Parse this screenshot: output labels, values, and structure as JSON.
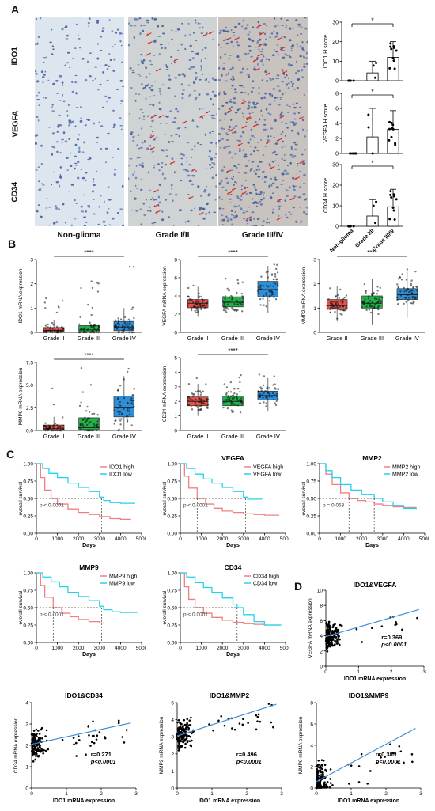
{
  "panels": {
    "a": "A",
    "b": "B",
    "c": "C",
    "d": "D"
  },
  "histology": {
    "row_labels": [
      "IDO1",
      "VEGFA",
      "CD34"
    ],
    "col_labels": [
      "Non-glioma",
      "Grade I/II",
      "Grade III/IV"
    ]
  },
  "colors": {
    "grade2": "#e8524a",
    "grade3": "#1fb34a",
    "grade4": "#2e8fd8",
    "high": "#f08080",
    "low": "#22d3ee",
    "reg": "#3b8fd9"
  },
  "chart_data": [
    {
      "type": "bar",
      "id": "h_ido1",
      "ylabel": "IDO1 H score",
      "categories": [
        "Non-glioma",
        "Grade I/II",
        "Grade III/IV"
      ],
      "values": [
        0,
        4,
        12
      ],
      "errors": [
        0,
        6,
        8
      ],
      "ylim": [
        0,
        30
      ],
      "yticks": [
        "0",
        "10",
        "20",
        "30"
      ],
      "sig": "*"
    },
    {
      "type": "bar",
      "id": "h_vegfa",
      "ylabel": "VEGFA H score",
      "categories": [
        "Non-glioma",
        "Grade I/II",
        "Grade III/IV"
      ],
      "values": [
        0,
        2.2,
        3.2
      ],
      "errors": [
        0,
        3.8,
        2.5
      ],
      "ylim": [
        0,
        8
      ],
      "yticks": [
        "0",
        "2",
        "4",
        "6",
        "8"
      ],
      "sig": "*"
    },
    {
      "type": "bar",
      "id": "h_cd34",
      "ylabel": "CD34 H score",
      "categories": [
        "Non-glioma",
        "Grade I/II",
        "Grade III/IV"
      ],
      "values": [
        0,
        5,
        9.5
      ],
      "errors": [
        0,
        8,
        8.5
      ],
      "ylim": [
        0,
        30
      ],
      "yticks": [
        "0",
        "10",
        "20",
        "30"
      ],
      "sig": "*"
    },
    {
      "type": "box",
      "id": "b_ido1",
      "ylabel": "IDO1 mRNA expression",
      "categories": [
        "Grade II",
        "Grade III",
        "Grade IV"
      ],
      "medians": [
        0.08,
        0.1,
        0.22
      ],
      "q1": [
        0.02,
        0.03,
        0.07
      ],
      "q3": [
        0.2,
        0.28,
        0.45
      ],
      "wlo": [
        0,
        0,
        0
      ],
      "whi": [
        0.5,
        0.65,
        1.0
      ],
      "ymax": [
        1.5,
        2.2,
        2.9
      ],
      "ylim": [
        0,
        3
      ],
      "yticks": [
        "0",
        "1",
        "2",
        "3"
      ],
      "sig": "****"
    },
    {
      "type": "box",
      "id": "b_vegfa",
      "ylabel": "VEGFA mRNA expression",
      "categories": [
        "Grade II",
        "Grade III",
        "Grade IV"
      ],
      "medians": [
        3.2,
        3.3,
        4.7
      ],
      "q1": [
        2.7,
        2.8,
        3.9
      ],
      "q3": [
        3.6,
        3.9,
        5.6
      ],
      "wlo": [
        1.7,
        1.5,
        2.1
      ],
      "whi": [
        5.0,
        5.5,
        7.3
      ],
      "ymax": [
        5.5,
        6.0,
        7.5
      ],
      "ylim": [
        0,
        8
      ],
      "yticks": [
        "0",
        "2",
        "4",
        "6",
        "8"
      ],
      "sig": "****"
    },
    {
      "type": "box",
      "id": "b_mmp2",
      "ylabel": "MMP2 mRNA expression",
      "categories": [
        "Grade II",
        "Grade III",
        "Grade IV"
      ],
      "medians": [
        1.1,
        1.2,
        1.55
      ],
      "q1": [
        0.95,
        1.0,
        1.35
      ],
      "q3": [
        1.35,
        1.5,
        1.8
      ],
      "wlo": [
        0.45,
        0.3,
        0.6
      ],
      "whi": [
        1.9,
        2.2,
        2.5
      ],
      "ymax": [
        2.0,
        2.3,
        2.6
      ],
      "ylim": [
        0,
        3
      ],
      "yticks": [
        "0",
        "1",
        "2",
        "3"
      ],
      "sig": "****"
    },
    {
      "type": "box",
      "id": "b_mmp9",
      "ylabel": "MMP9 mRNA expression",
      "categories": [
        "Grade II",
        "Grade III",
        "Grade IV"
      ],
      "medians": [
        0.2,
        0.3,
        2.5
      ],
      "q1": [
        0.08,
        0.1,
        1.5
      ],
      "q3": [
        0.6,
        1.4,
        3.8
      ],
      "wlo": [
        0,
        0,
        0.1
      ],
      "whi": [
        1.5,
        3.2,
        6.0
      ],
      "ymax": [
        5.5,
        7.0,
        7.5
      ],
      "ylim": [
        0,
        7.5
      ],
      "yticks": [
        "0.0",
        "2.5",
        "5.0",
        "7.5"
      ],
      "sig": "****"
    },
    {
      "type": "box",
      "id": "b_cd34",
      "ylabel": "CD34 mRNA expression",
      "categories": [
        "Grade II",
        "Grade III",
        "Grade IV"
      ],
      "medians": [
        2.0,
        2.0,
        2.4
      ],
      "q1": [
        1.7,
        1.7,
        2.1
      ],
      "q3": [
        2.3,
        2.35,
        2.7
      ],
      "wlo": [
        1.0,
        0.9,
        1.3
      ],
      "whi": [
        3.2,
        3.4,
        3.6
      ],
      "ymax": [
        3.6,
        3.9,
        4.1
      ],
      "ylim": [
        0,
        5
      ],
      "yticks": [
        "0",
        "1",
        "2",
        "3",
        "4",
        "5"
      ],
      "sig": "****"
    },
    {
      "type": "line",
      "id": "k_ido1",
      "title": "",
      "xlabel": "Days",
      "ylabel": "overall survival",
      "xlim": [
        0,
        5000
      ],
      "ylim": [
        0,
        1
      ],
      "xticks": [
        "0",
        "1000",
        "2000",
        "3000",
        "4000",
        "5000"
      ],
      "yticks": [
        "0.00",
        "0.25",
        "0.50",
        "0.75",
        "1.00"
      ],
      "pvalue": "p < 0.0001",
      "median_high": 700,
      "median_low": 3100,
      "series": [
        {
          "name": "IDO1 high",
          "x": [
            0,
            200,
            400,
            700,
            1000,
            1500,
            2000,
            2500,
            3000,
            3500,
            4000,
            4500
          ],
          "y": [
            1.0,
            0.8,
            0.62,
            0.5,
            0.42,
            0.35,
            0.3,
            0.27,
            0.24,
            0.21,
            0.2,
            0.2
          ]
        },
        {
          "name": "IDO1 low",
          "x": [
            0,
            300,
            600,
            1000,
            1500,
            2000,
            2500,
            3000,
            3200,
            3500,
            4000,
            4700
          ],
          "y": [
            1.0,
            0.93,
            0.86,
            0.8,
            0.72,
            0.66,
            0.6,
            0.52,
            0.47,
            0.44,
            0.43,
            0.43
          ]
        }
      ]
    },
    {
      "type": "line",
      "id": "k_vegfa",
      "title": "VEGFA",
      "xlabel": "Days",
      "ylabel": "overall survival",
      "xlim": [
        0,
        5000
      ],
      "ylim": [
        0,
        1
      ],
      "xticks": [
        "0",
        "1000",
        "2000",
        "3000",
        "4000",
        "5000"
      ],
      "yticks": [
        "0.00",
        "0.25",
        "0.50",
        "0.75",
        "1.00"
      ],
      "pvalue": "p < 0.0001",
      "median_high": 800,
      "median_low": 3100,
      "series": [
        {
          "name": "VEGFA high",
          "x": [
            0,
            200,
            400,
            800,
            1200,
            1600,
            2000,
            2500,
            3000,
            3500,
            4000,
            4700
          ],
          "y": [
            1.0,
            0.82,
            0.65,
            0.5,
            0.42,
            0.36,
            0.32,
            0.3,
            0.28,
            0.27,
            0.26,
            0.26
          ]
        },
        {
          "name": "VEGFA low",
          "x": [
            0,
            300,
            700,
            1100,
            1500,
            2000,
            2500,
            3000,
            3200,
            3500,
            3900
          ],
          "y": [
            1.0,
            0.93,
            0.85,
            0.78,
            0.72,
            0.66,
            0.6,
            0.52,
            0.49,
            0.49,
            0.49
          ]
        }
      ]
    },
    {
      "type": "line",
      "id": "k_mmp2",
      "title": "MMP2",
      "xlabel": "Days",
      "ylabel": "overall survival",
      "xlim": [
        0,
        5000
      ],
      "ylim": [
        0,
        1
      ],
      "xticks": [
        "0",
        "1000",
        "2000",
        "3000",
        "4000",
        "5000"
      ],
      "yticks": [
        "0.00",
        "0.25",
        "0.50",
        "0.75",
        "1.00"
      ],
      "pvalue": "p = 0.053",
      "median_high": 1400,
      "median_low": 2600,
      "series": [
        {
          "name": "MMP2 high",
          "x": [
            0,
            300,
            600,
            1000,
            1400,
            1800,
            2200,
            2600,
            3000,
            3500,
            4000,
            4600
          ],
          "y": [
            1.0,
            0.85,
            0.7,
            0.58,
            0.5,
            0.47,
            0.45,
            0.42,
            0.4,
            0.38,
            0.37,
            0.37
          ]
        },
        {
          "name": "MMP2 low",
          "x": [
            0,
            300,
            600,
            1000,
            1500,
            2000,
            2600,
            3000,
            3500,
            4000,
            4600
          ],
          "y": [
            1.0,
            0.9,
            0.8,
            0.7,
            0.62,
            0.56,
            0.5,
            0.45,
            0.4,
            0.36,
            0.35
          ]
        }
      ]
    },
    {
      "type": "line",
      "id": "k_mmp9",
      "title": "MMP9",
      "xlabel": "Days",
      "ylabel": "overall survival",
      "xlim": [
        0,
        5000
      ],
      "ylim": [
        0,
        1
      ],
      "xticks": [
        "0",
        "1000",
        "2000",
        "3000",
        "4000",
        "5000"
      ],
      "yticks": [
        "0.00",
        "0.25",
        "0.50",
        "0.75",
        "1.00"
      ],
      "pvalue": "p < 0.0001",
      "median_high": 800,
      "median_low": 3100,
      "series": [
        {
          "name": "MMP9 high",
          "x": [
            0,
            200,
            400,
            800,
            1200,
            1600,
            2000,
            2500,
            3000,
            3200
          ],
          "y": [
            1.0,
            0.82,
            0.65,
            0.5,
            0.42,
            0.37,
            0.33,
            0.3,
            0.28,
            0.27
          ]
        },
        {
          "name": "MMP9 low",
          "x": [
            0,
            300,
            700,
            1100,
            1500,
            2000,
            2500,
            3000,
            3200,
            3600,
            4000,
            4800
          ],
          "y": [
            1.0,
            0.94,
            0.87,
            0.8,
            0.72,
            0.66,
            0.6,
            0.52,
            0.47,
            0.44,
            0.43,
            0.43
          ]
        }
      ]
    },
    {
      "type": "line",
      "id": "k_cd34",
      "title": "CD34",
      "xlabel": "Days",
      "ylabel": "overall survival",
      "xlim": [
        0,
        5000
      ],
      "ylim": [
        0,
        1
      ],
      "xticks": [
        "0",
        "1000",
        "2000",
        "3000",
        "4000",
        "5000"
      ],
      "yticks": [
        "0.00",
        "0.25",
        "0.50",
        "0.75",
        "1.00"
      ],
      "pvalue": "p < 0.0001",
      "median_high": 700,
      "median_low": 2700,
      "series": [
        {
          "name": "CD34 high",
          "x": [
            0,
            200,
            400,
            700,
            1100,
            1500,
            2000,
            2500,
            3000,
            3500,
            4000,
            4700
          ],
          "y": [
            1.0,
            0.8,
            0.62,
            0.5,
            0.42,
            0.36,
            0.32,
            0.29,
            0.27,
            0.26,
            0.25,
            0.25
          ]
        },
        {
          "name": "CD34 low",
          "x": [
            0,
            300,
            700,
            1100,
            1500,
            2000,
            2500,
            2700,
            3000,
            3500,
            4000,
            4800
          ],
          "y": [
            1.0,
            0.94,
            0.86,
            0.79,
            0.72,
            0.64,
            0.55,
            0.5,
            0.4,
            0.3,
            0.25,
            0.25
          ]
        }
      ]
    },
    {
      "type": "scatter",
      "id": "s_vegfa",
      "title": "IDO1&VEGFA",
      "xlabel": "IDO1 mRNA expression",
      "ylabel": "VEGFA mRNA expression",
      "xlim": [
        0,
        3
      ],
      "ylim": [
        0,
        10
      ],
      "xticks": [
        "0",
        "1",
        "2",
        "3"
      ],
      "yticks": [
        "0",
        "2",
        "4",
        "6",
        "8",
        "10"
      ],
      "slope": 1.25,
      "intercept": 3.9,
      "r": "r=0.369",
      "p": "p<0.0001",
      "cx": 0.5,
      "cy": 4.0,
      "sx": 0.35,
      "sy": 1.3
    },
    {
      "type": "scatter",
      "id": "s_cd34",
      "title": "IDO1&CD34",
      "xlabel": "IDO1 mRNA expression",
      "ylabel": "CD34 mRNA expression",
      "xlim": [
        0,
        3
      ],
      "ylim": [
        0,
        4
      ],
      "xticks": [
        "0",
        "1",
        "2",
        "3"
      ],
      "yticks": [
        "0",
        "1",
        "2",
        "3",
        "4"
      ],
      "slope": 0.35,
      "intercept": 2.05,
      "r": "r=0.271",
      "p": "p<0.0001",
      "cx": 0.3,
      "cy": 2.2,
      "sx": 0.3,
      "sy": 0.55
    },
    {
      "type": "scatter",
      "id": "s_mmp2",
      "title": "IDO1&MMP2",
      "xlabel": "IDO1 mRNA expression",
      "ylabel": "MMP2 mRNA expression",
      "xlim": [
        0,
        3
      ],
      "ylim": [
        0,
        5
      ],
      "xticks": [
        "0",
        "1",
        "2",
        "3"
      ],
      "yticks": [
        "0",
        "1",
        "2",
        "3",
        "4",
        "5"
      ],
      "slope": 0.65,
      "intercept": 3.05,
      "r": "r=0.496",
      "p": "p<0.0001",
      "cx": 0.4,
      "cy": 3.3,
      "sx": 0.35,
      "sy": 0.7
    },
    {
      "type": "scatter",
      "id": "s_mmp9",
      "title": "IDO1&MMP9",
      "xlabel": "IDO1 mRNA expression",
      "ylabel": "MMP9 mRNA expression",
      "xlim": [
        0,
        3
      ],
      "ylim": [
        0,
        8
      ],
      "xticks": [
        "0",
        "1",
        "2",
        "3"
      ],
      "yticks": [
        "0",
        "2",
        "4",
        "6",
        "8"
      ],
      "slope": 1.75,
      "intercept": 0.6,
      "r": "r=0.385",
      "p": "p<0.0001",
      "cx": 0.35,
      "cy": 1.2,
      "sx": 0.3,
      "sy": 1.5
    }
  ]
}
